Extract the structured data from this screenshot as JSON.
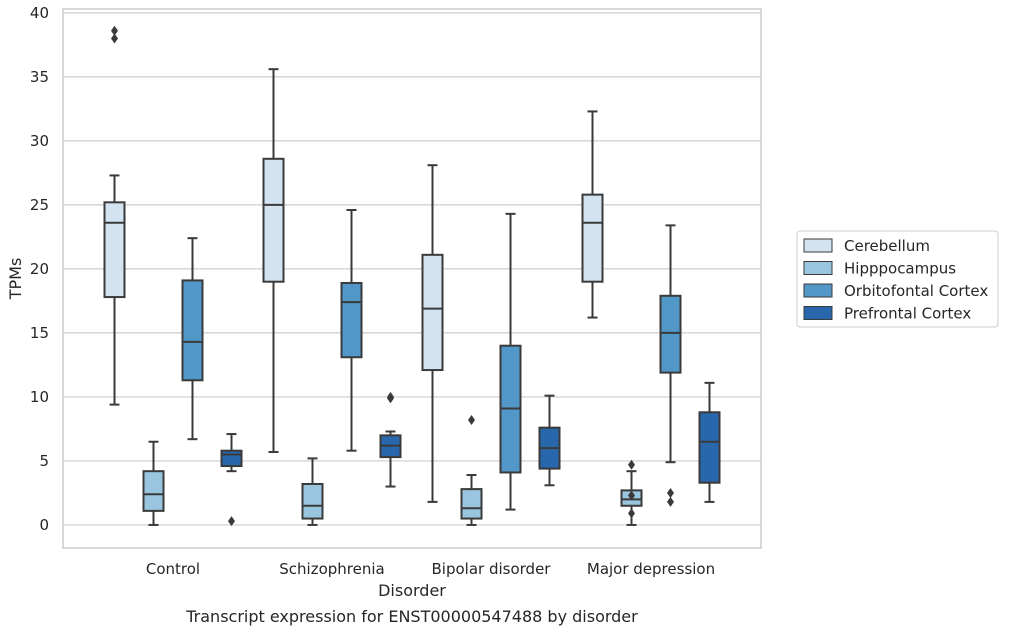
{
  "chart_data": {
    "type": "box",
    "ylabel": "TPMs",
    "xlabel": "Disorder",
    "caption": "Transcript expression for ENST00000547488 by disorder",
    "ylim": [
      -1.8,
      40.3
    ],
    "yticks": [
      0,
      5,
      10,
      15,
      20,
      25,
      30,
      35,
      40
    ],
    "grid": true,
    "legend_position": "right",
    "categories": [
      "Control",
      "Schizophrenia",
      "Bipolar disorder",
      "Major depression"
    ],
    "series": [
      {
        "name": "Cerebellum",
        "color": "#d3e3f2",
        "boxes": [
          {
            "whisker_low": 9.4,
            "q1": 17.8,
            "median": 23.6,
            "q3": 25.2,
            "whisker_high": 27.3,
            "outliers": [
              38.0,
              38.6
            ]
          },
          {
            "whisker_low": 5.7,
            "q1": 19.0,
            "median": 25.0,
            "q3": 28.6,
            "whisker_high": 35.6,
            "outliers": []
          },
          {
            "whisker_low": 1.8,
            "q1": 12.1,
            "median": 16.9,
            "q3": 21.1,
            "whisker_high": 28.1,
            "outliers": []
          },
          {
            "whisker_low": 16.2,
            "q1": 19.0,
            "median": 23.6,
            "q3": 25.8,
            "whisker_high": 32.3,
            "outliers": []
          }
        ]
      },
      {
        "name": "Hipppocampus",
        "color": "#9ac5df",
        "boxes": [
          {
            "whisker_low": 0.0,
            "q1": 1.1,
            "median": 2.4,
            "q3": 4.2,
            "whisker_high": 6.5,
            "outliers": []
          },
          {
            "whisker_low": 0.0,
            "q1": 0.5,
            "median": 1.5,
            "q3": 3.2,
            "whisker_high": 5.2,
            "outliers": []
          },
          {
            "whisker_low": 0.0,
            "q1": 0.5,
            "median": 1.3,
            "q3": 2.8,
            "whisker_high": 3.9,
            "outliers": [
              8.2
            ]
          },
          {
            "whisker_low": 0.0,
            "q1": 1.5,
            "median": 2.0,
            "q3": 2.7,
            "whisker_high": 4.2,
            "outliers": [
              0.9,
              2.3,
              4.7
            ]
          }
        ]
      },
      {
        "name": "Orbitofontal Cortex",
        "color": "#5198c8",
        "boxes": [
          {
            "whisker_low": 6.7,
            "q1": 11.3,
            "median": 14.3,
            "q3": 19.1,
            "whisker_high": 22.4,
            "outliers": []
          },
          {
            "whisker_low": 5.8,
            "q1": 13.1,
            "median": 17.4,
            "q3": 18.9,
            "whisker_high": 24.6,
            "outliers": []
          },
          {
            "whisker_low": 1.2,
            "q1": 4.1,
            "median": 9.1,
            "q3": 14.0,
            "whisker_high": 24.3,
            "outliers": []
          },
          {
            "whisker_low": 4.9,
            "q1": 11.9,
            "median": 15.0,
            "q3": 17.9,
            "whisker_high": 23.4,
            "outliers": [
              1.8,
              2.5
            ]
          }
        ]
      },
      {
        "name": "Prefrontal Cortex",
        "color": "#2867ac",
        "boxes": [
          {
            "whisker_low": 4.2,
            "q1": 4.6,
            "median": 5.5,
            "q3": 5.8,
            "whisker_high": 7.1,
            "outliers": [
              0.3
            ]
          },
          {
            "whisker_low": 3.0,
            "q1": 5.3,
            "median": 6.2,
            "q3": 7.0,
            "whisker_high": 7.3,
            "outliers": [
              9.9,
              10.0
            ]
          },
          {
            "whisker_low": 3.1,
            "q1": 4.4,
            "median": 6.0,
            "q3": 7.6,
            "whisker_high": 10.1,
            "outliers": []
          },
          {
            "whisker_low": 1.8,
            "q1": 3.3,
            "median": 6.5,
            "q3": 8.8,
            "whisker_high": 11.1,
            "outliers": []
          }
        ]
      }
    ]
  }
}
